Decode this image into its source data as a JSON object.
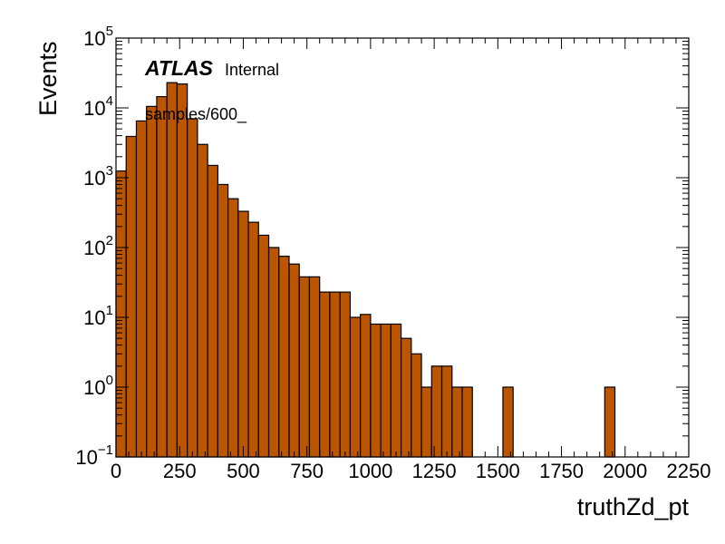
{
  "chart_data": {
    "type": "bar",
    "style": "histogram",
    "xlabel": "truthZd_pt",
    "ylabel": "Events",
    "xlim": [
      0,
      2250
    ],
    "ylim": [
      0.1,
      100000
    ],
    "yscale": "log",
    "bin_width": 40,
    "bar_color": "#bb5500",
    "edge_color": "#000000",
    "x_ticks": [
      "0",
      "250",
      "500",
      "750",
      "1000",
      "1250",
      "1500",
      "1750",
      "2000",
      "2250"
    ],
    "y_ticks": [
      {
        "base": "10",
        "exp": "−1"
      },
      {
        "base": "10",
        "exp": "0"
      },
      {
        "base": "10",
        "exp": "1"
      },
      {
        "base": "10",
        "exp": "2"
      },
      {
        "base": "10",
        "exp": "3"
      },
      {
        "base": "10",
        "exp": "4"
      },
      {
        "base": "10",
        "exp": "5"
      }
    ],
    "atlas_label": "ATLAS",
    "atlas_status": "Internal",
    "sample_label": "samples/600_",
    "bins": [
      {
        "x0": 0,
        "count": 1250
      },
      {
        "x0": 40,
        "count": 3900
      },
      {
        "x0": 80,
        "count": 6500
      },
      {
        "x0": 120,
        "count": 10500
      },
      {
        "x0": 160,
        "count": 14500
      },
      {
        "x0": 200,
        "count": 23000
      },
      {
        "x0": 240,
        "count": 22000
      },
      {
        "x0": 280,
        "count": 7000
      },
      {
        "x0": 320,
        "count": 3000
      },
      {
        "x0": 360,
        "count": 1500
      },
      {
        "x0": 400,
        "count": 800
      },
      {
        "x0": 440,
        "count": 500
      },
      {
        "x0": 480,
        "count": 330
      },
      {
        "x0": 520,
        "count": 230
      },
      {
        "x0": 560,
        "count": 150
      },
      {
        "x0": 600,
        "count": 100
      },
      {
        "x0": 640,
        "count": 75
      },
      {
        "x0": 680,
        "count": 58
      },
      {
        "x0": 720,
        "count": 38
      },
      {
        "x0": 760,
        "count": 38
      },
      {
        "x0": 800,
        "count": 23
      },
      {
        "x0": 840,
        "count": 23
      },
      {
        "x0": 880,
        "count": 23
      },
      {
        "x0": 920,
        "count": 10
      },
      {
        "x0": 960,
        "count": 11
      },
      {
        "x0": 1000,
        "count": 8
      },
      {
        "x0": 1040,
        "count": 8
      },
      {
        "x0": 1080,
        "count": 8
      },
      {
        "x0": 1120,
        "count": 5
      },
      {
        "x0": 1160,
        "count": 3
      },
      {
        "x0": 1200,
        "count": 1
      },
      {
        "x0": 1240,
        "count": 2
      },
      {
        "x0": 1280,
        "count": 2
      },
      {
        "x0": 1320,
        "count": 1
      },
      {
        "x0": 1360,
        "count": 1
      },
      {
        "x0": 1520,
        "count": 1
      },
      {
        "x0": 1920,
        "count": 1
      }
    ]
  }
}
